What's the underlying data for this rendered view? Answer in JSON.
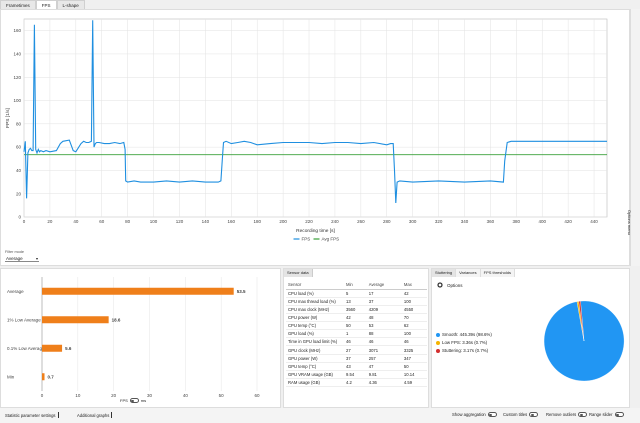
{
  "tabs": [
    "Frametimes",
    "FPS",
    "L-shape"
  ],
  "options_label": "Options menu",
  "colors": {
    "fps": "#1f8fe0",
    "avg": "#3aa03a",
    "bar": "#ef7f1a",
    "smooth": "#2196f3",
    "lowfps": "#f5b400",
    "stutter": "#d32f2f"
  },
  "chart_data": [
    {
      "type": "line",
      "xlabel": "Recording time [s]",
      "ylabel": "FPS [1/s]",
      "xlim": [
        0,
        450
      ],
      "ylim": [
        0,
        170
      ],
      "xticks": [
        0,
        20,
        40,
        60,
        80,
        100,
        120,
        140,
        160,
        180,
        200,
        220,
        240,
        260,
        280,
        300,
        320,
        340,
        360,
        380,
        400,
        420,
        440
      ],
      "yticks": [
        0,
        20,
        40,
        60,
        80,
        100,
        120,
        140,
        160
      ],
      "grid": true,
      "legend": "bottom-center",
      "series": [
        {
          "name": "FPS",
          "x": [
            0,
            1,
            2,
            3,
            4,
            5,
            6,
            7,
            8,
            9,
            10,
            11,
            12,
            13,
            15,
            17,
            20,
            25,
            28,
            30,
            35,
            38,
            40,
            44,
            46,
            48,
            50,
            52,
            53,
            54,
            55,
            56,
            58,
            62,
            66,
            70,
            74,
            77,
            78,
            78.5,
            80,
            85,
            90,
            100,
            110,
            120,
            130,
            140,
            150,
            152,
            153,
            154,
            156,
            160,
            165,
            170,
            175,
            180,
            190,
            200,
            210,
            220,
            230,
            240,
            250,
            260,
            270,
            280,
            283,
            285,
            286,
            287,
            288,
            290,
            300,
            320,
            340,
            360,
            370,
            371,
            373,
            376,
            380,
            400,
            420,
            440,
            450
          ],
          "values": [
            56,
            65,
            16,
            55,
            58,
            59,
            57,
            57,
            165,
            58,
            55,
            58,
            56,
            57,
            56,
            57,
            56,
            57,
            63,
            65,
            66,
            57,
            56,
            63,
            65,
            64,
            64,
            65,
            169,
            60,
            63,
            64,
            64,
            63,
            63,
            64,
            63,
            64,
            58,
            31,
            30,
            31,
            30,
            30,
            31,
            30,
            31,
            30,
            30,
            31,
            48,
            64,
            65,
            63,
            64,
            65,
            64,
            62,
            63,
            64,
            64,
            64,
            63,
            64,
            64,
            63,
            64,
            62,
            63,
            63,
            40,
            12,
            30,
            31,
            30,
            31,
            30,
            31,
            30,
            48,
            64,
            65,
            65,
            65,
            65,
            65,
            65
          ]
        },
        {
          "name": "Avg FPS",
          "x": [
            0,
            450
          ],
          "values": [
            53.5,
            53.5
          ]
        }
      ]
    },
    {
      "type": "bar",
      "categories": [
        "Average",
        "1% Low Average",
        "0.1% Low Average",
        "Min"
      ],
      "values": [
        53.5,
        18.6,
        5.6,
        0.7
      ],
      "xticks": [
        0,
        10,
        20,
        30,
        40,
        50,
        60
      ],
      "xlim": [
        0,
        60
      ],
      "xlabel": "FPS"
    },
    {
      "type": "pie",
      "categories": [
        "Smooth",
        "Low FPS",
        "Stuttering"
      ],
      "values": [
        98.6,
        0.7,
        0.7
      ]
    }
  ],
  "filter": {
    "label": "Filter mode",
    "value": "Average"
  },
  "unit_toggle": {
    "left": "FPS",
    "right": "ms"
  },
  "sensor": {
    "tab": "Sensor data",
    "columns": [
      "Sensor",
      "Min",
      "Average",
      "Max"
    ],
    "rows": [
      [
        "CPU load (%)",
        "5",
        "17",
        "42"
      ],
      [
        "CPU max thread load (%)",
        "13",
        "37",
        "100"
      ],
      [
        "CPU max clock (MHz)",
        "3560",
        "4209",
        "4550"
      ],
      [
        "CPU power (W)",
        "42",
        "48",
        "70"
      ],
      [
        "CPU temp (°C)",
        "50",
        "53",
        "62"
      ],
      [
        "GPU load (%)",
        "1",
        "88",
        "100"
      ],
      [
        "Time in GPU load limit (%)",
        "46",
        "46",
        "46"
      ],
      [
        "GPU clock (MHz)",
        "27",
        "3071",
        "3325"
      ],
      [
        "GPU power (W)",
        "37",
        "257",
        "347"
      ],
      [
        "GPU temp (°C)",
        "43",
        "47",
        "50"
      ],
      [
        "GPU VRAM usage (GB)",
        "9.54",
        "9.81",
        "10.14"
      ],
      [
        "RAM usage (GB)",
        "4.2",
        "4.36",
        "4.59"
      ]
    ]
  },
  "stutter": {
    "tabs": [
      "Stuttering",
      "Variances",
      "FPS thresholds"
    ],
    "options": "Options",
    "legend": [
      {
        "label": "Smooth: 445.39s (98.6%)"
      },
      {
        "label": "Low FPS: 3.36s (0.7%)"
      },
      {
        "label": "Stuttering: 3.17s (0.7%)"
      }
    ]
  },
  "bottom": {
    "stat_settings": "Statistic parameter settings",
    "additional_graphs": "Additional graphs",
    "show_aggregation": "Show aggregation",
    "custom_titles": "Custom titles",
    "remove_outliers": "Remove outliers",
    "range_slider": "Range slider"
  }
}
